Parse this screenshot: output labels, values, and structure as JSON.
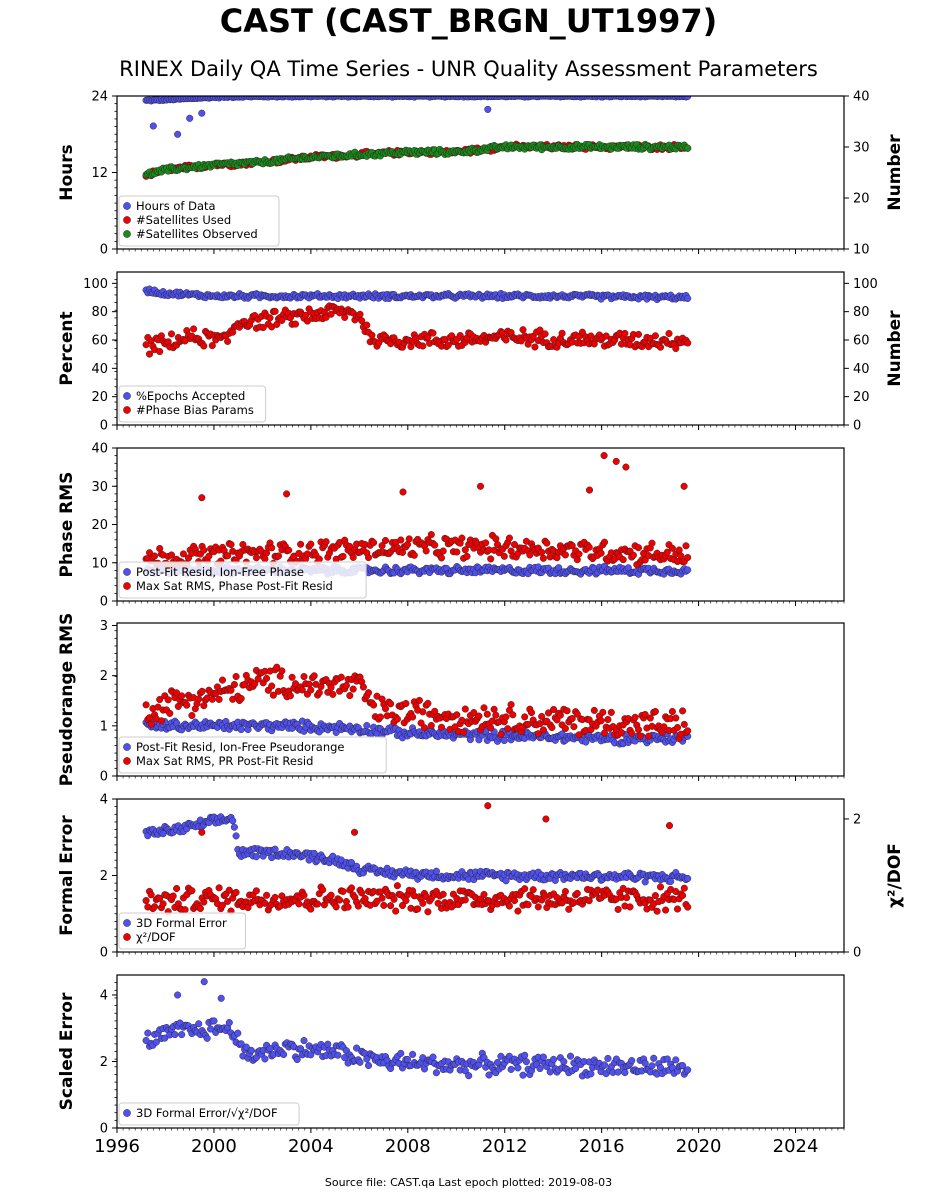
{
  "title": "CAST (CAST_BRGN_UT1997)",
  "subtitle": "RINEX Daily QA Time Series - UNR Quality Assessment Parameters",
  "footer": "Source file: CAST.qa Last epoch plotted: 2019-08-03",
  "colors": {
    "blue": "#5050f0",
    "red": "#ee0000",
    "green": "#1a8a1a"
  },
  "chart_data": [
    {
      "type": "scatter",
      "ylabel": "Hours",
      "ylabel_right": "Number",
      "ylim": [
        0,
        24
      ],
      "yticks": [
        "0",
        "12",
        "24"
      ],
      "ylim_right": [
        10,
        40
      ],
      "yticks_right": [
        "10",
        "20",
        "30",
        "40"
      ],
      "legend": [
        "Hours of Data",
        "#Satellites Used",
        "#Satellites Observed"
      ],
      "series": [
        {
          "name": "Hours of Data",
          "axis": "left",
          "points": [
            [
              1997.2,
              23.3
            ],
            [
              1998,
              23.4
            ],
            [
              1999,
              23.6
            ],
            [
              2000,
              23.8
            ],
            [
              2001,
              23.9
            ],
            [
              2004,
              23.95
            ],
            [
              2008,
              23.95
            ],
            [
              2012,
              23.95
            ],
            [
              2016,
              23.95
            ],
            [
              2019.5,
              23.95
            ]
          ],
          "outliers": [
            [
              1997.5,
              19.3
            ],
            [
              1998.5,
              18.0
            ],
            [
              1999.0,
              20.5
            ],
            [
              1999.5,
              21.3
            ],
            [
              2011.3,
              21.9
            ]
          ]
        },
        {
          "name": "#Satellites Used",
          "axis": "right",
          "points": [
            [
              1997.2,
              24.5
            ],
            [
              1998,
              25.5
            ],
            [
              2000,
              26.5
            ],
            [
              2002,
              27.0
            ],
            [
              2004,
              28.0
            ],
            [
              2006,
              28.5
            ],
            [
              2008,
              29.0
            ],
            [
              2010,
              29.0
            ],
            [
              2012,
              30.0
            ],
            [
              2016,
              30.0
            ],
            [
              2019.5,
              30.0
            ]
          ]
        },
        {
          "name": "#Satellites Observed",
          "axis": "right",
          "points": [
            [
              1997.2,
              24.5
            ],
            [
              1998,
              25.5
            ],
            [
              2000,
              26.5
            ],
            [
              2002,
              27.0
            ],
            [
              2004,
              28.0
            ],
            [
              2006,
              28.5
            ],
            [
              2008,
              29.0
            ],
            [
              2010,
              29.0
            ],
            [
              2012,
              30.0
            ],
            [
              2016,
              30.0
            ],
            [
              2019.5,
              30.0
            ]
          ]
        }
      ]
    },
    {
      "type": "scatter",
      "ylabel": "Percent",
      "ylabel_right": "Number",
      "ylim": [
        0,
        108
      ],
      "yticks": [
        "0",
        "20",
        "40",
        "60",
        "80",
        "100"
      ],
      "ylim_right": [
        0,
        108
      ],
      "yticks_right": [
        "0",
        "20",
        "40",
        "60",
        "80",
        "100"
      ],
      "legend": [
        "%Epochs Accepted",
        "#Phase Bias Params"
      ],
      "series": [
        {
          "name": "%Epochs Accepted",
          "axis": "left",
          "points": [
            [
              1997.2,
              95
            ],
            [
              1998,
              93
            ],
            [
              2000,
              91
            ],
            [
              2002,
              91
            ],
            [
              2006,
              91
            ],
            [
              2010,
              91
            ],
            [
              2014,
              91
            ],
            [
              2019.5,
              90
            ]
          ]
        },
        {
          "name": "#Phase Bias Params",
          "axis": "right",
          "points": [
            [
              1997.2,
              56
            ],
            [
              1998,
              57
            ],
            [
              1999,
              62
            ],
            [
              2000.5,
              60
            ],
            [
              2001,
              73
            ],
            [
              2003,
              75
            ],
            [
              2004,
              78
            ],
            [
              2005,
              80
            ],
            [
              2006,
              78
            ],
            [
              2006.5,
              60
            ],
            [
              2010,
              60
            ],
            [
              2012,
              62
            ],
            [
              2016,
              60
            ],
            [
              2019.5,
              60
            ]
          ]
        }
      ]
    },
    {
      "type": "scatter",
      "ylabel": "Phase RMS",
      "ylim": [
        0,
        40
      ],
      "yticks": [
        "0",
        "10",
        "20",
        "30",
        "40"
      ],
      "legend": [
        "Post-Fit Resid, Ion-Free Phase",
        "Max Sat RMS, Phase Post-Fit Resid"
      ],
      "series": [
        {
          "name": "Post-Fit Resid, Ion-Free Phase",
          "points": [
            [
              1997.2,
              8.0
            ],
            [
              2000,
              8.0
            ],
            [
              2004,
              8.0
            ],
            [
              2008,
              8.0
            ],
            [
              2012,
              8.0
            ],
            [
              2016,
              8.0
            ],
            [
              2019.5,
              8.0
            ]
          ]
        },
        {
          "name": "Max Sat RMS, Phase Post-Fit Resid",
          "points": [
            [
              1997.2,
              11
            ],
            [
              2000,
              12
            ],
            [
              2004,
              13
            ],
            [
              2008,
              14
            ],
            [
              2012,
              14
            ],
            [
              2016,
              13
            ],
            [
              2019.5,
              12
            ]
          ],
          "outliers": [
            [
              1999.5,
              27
            ],
            [
              2003,
              28
            ],
            [
              2007.8,
              28.5
            ],
            [
              2011,
              30
            ],
            [
              2015.5,
              29
            ],
            [
              2016.1,
              38
            ],
            [
              2016.6,
              36.5
            ],
            [
              2017,
              35
            ],
            [
              2019.4,
              30
            ]
          ]
        }
      ]
    },
    {
      "type": "scatter",
      "ylabel": "Pseudorange RMS",
      "ylim": [
        0,
        3.05
      ],
      "yticks": [
        "0",
        "1",
        "2",
        "3"
      ],
      "legend": [
        "Post-Fit Resid, Ion-Free Pseudorange",
        "Max Sat RMS, PR Post-Fit Resid"
      ],
      "series": [
        {
          "name": "Post-Fit Resid, Ion-Free Pseudorange",
          "points": [
            [
              1997.2,
              1.0
            ],
            [
              2000,
              1.0
            ],
            [
              2003,
              1.0
            ],
            [
              2006,
              0.95
            ],
            [
              2008,
              0.85
            ],
            [
              2012,
              0.8
            ],
            [
              2016,
              0.75
            ],
            [
              2019.5,
              0.75
            ]
          ]
        },
        {
          "name": "Max Sat RMS, PR Post-Fit Resid",
          "points": [
            [
              1997.2,
              1.3
            ],
            [
              1998.5,
              1.5
            ],
            [
              2000,
              1.6
            ],
            [
              2002,
              1.9
            ],
            [
              2004,
              1.8
            ],
            [
              2006,
              1.8
            ],
            [
              2006.7,
              1.3
            ],
            [
              2010,
              1.2
            ],
            [
              2014,
              1.1
            ],
            [
              2019.5,
              1.0
            ]
          ]
        }
      ]
    },
    {
      "type": "scatter",
      "ylabel": "Formal Error",
      "ylabel_right": "χ²/DOF",
      "ylim": [
        0,
        4
      ],
      "yticks": [
        "0",
        "2",
        "4"
      ],
      "ylim_right": [
        0,
        2.3
      ],
      "yticks_right": [
        "0",
        "2"
      ],
      "legend": [
        "3D Formal Error",
        "χ²/DOF"
      ],
      "series": [
        {
          "name": "3D Formal Error",
          "axis": "left",
          "points": [
            [
              1997.2,
              3.1
            ],
            [
              1998.5,
              3.2
            ],
            [
              2000,
              3.4
            ],
            [
              2000.8,
              3.5
            ],
            [
              2001,
              2.6
            ],
            [
              2003,
              2.6
            ],
            [
              2005,
              2.4
            ],
            [
              2006.5,
              2.1
            ],
            [
              2010,
              2.0
            ],
            [
              2014,
              2.0
            ],
            [
              2019.5,
              1.95
            ]
          ]
        },
        {
          "name": "χ²/DOF",
          "axis": "right",
          "points": [
            [
              1997.2,
              0.75
            ],
            [
              2000,
              0.8
            ],
            [
              2004,
              0.8
            ],
            [
              2008,
              0.8
            ],
            [
              2012,
              0.8
            ],
            [
              2016,
              0.8
            ],
            [
              2019.5,
              0.8
            ]
          ],
          "outliers": [
            [
              1999.5,
              1.8
            ],
            [
              2005.8,
              1.8
            ],
            [
              2011.3,
              2.2
            ],
            [
              2013.7,
              2.0
            ],
            [
              2018.8,
              1.9
            ]
          ]
        }
      ]
    },
    {
      "type": "scatter",
      "ylabel": "Scaled Error",
      "ylim": [
        0,
        4.6
      ],
      "yticks": [
        "0",
        "2",
        "4"
      ],
      "legend": [
        "3D Formal Error/√χ²/DOF"
      ],
      "series": [
        {
          "name": "3D Formal Error/√χ²/DOF",
          "points": [
            [
              1997.2,
              2.6
            ],
            [
              1998.5,
              2.9
            ],
            [
              2000,
              3.0
            ],
            [
              2000.8,
              3.0
            ],
            [
              2001.2,
              2.2
            ],
            [
              2003,
              2.4
            ],
            [
              2005,
              2.3
            ],
            [
              2007,
              2.0
            ],
            [
              2010,
              1.9
            ],
            [
              2014,
              1.9
            ],
            [
              2019.5,
              1.8
            ]
          ],
          "outliers": [
            [
              1999.6,
              4.4
            ],
            [
              1998.5,
              4.0
            ],
            [
              2000.3,
              3.9
            ]
          ]
        }
      ]
    }
  ],
  "x_axis": {
    "xlim": [
      1996,
      2026
    ],
    "ticks": [
      "1996",
      "2000",
      "2004",
      "2008",
      "2012",
      "2016",
      "2020",
      "2024"
    ]
  }
}
